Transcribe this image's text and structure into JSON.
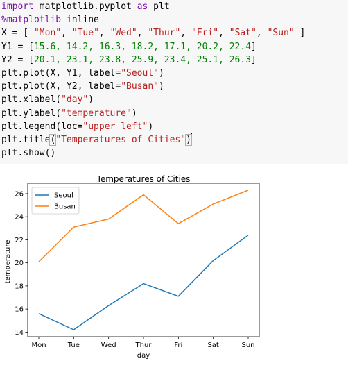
{
  "code_lines": [
    [
      {
        "t": "import",
        "c": "kw"
      },
      {
        "t": " matplotlib.pyplot ",
        "c": ""
      },
      {
        "t": "as",
        "c": "kw"
      },
      {
        "t": " plt",
        "c": ""
      }
    ],
    [
      {
        "t": "%matplotlib",
        "c": "magic"
      },
      {
        "t": " inline",
        "c": ""
      }
    ],
    [
      {
        "t": "X = [ ",
        "c": ""
      },
      {
        "t": "\"Mon\"",
        "c": "str"
      },
      {
        "t": ", ",
        "c": ""
      },
      {
        "t": "\"Tue\"",
        "c": "str"
      },
      {
        "t": ", ",
        "c": ""
      },
      {
        "t": "\"Wed\"",
        "c": "str"
      },
      {
        "t": ", ",
        "c": ""
      },
      {
        "t": "\"Thur\"",
        "c": "str"
      },
      {
        "t": ", ",
        "c": ""
      },
      {
        "t": "\"Fri\"",
        "c": "str"
      },
      {
        "t": ", ",
        "c": ""
      },
      {
        "t": "\"Sat\"",
        "c": "str"
      },
      {
        "t": ", ",
        "c": ""
      },
      {
        "t": "\"Sun\"",
        "c": "str"
      },
      {
        "t": " ]",
        "c": ""
      }
    ],
    [
      {
        "t": "Y1 = [",
        "c": ""
      },
      {
        "t": "15.6, 14.2, 16.3, 18.2, 17.1, 20.2, 22.4",
        "c": "num"
      },
      {
        "t": "]",
        "c": ""
      }
    ],
    [
      {
        "t": "Y2 = [",
        "c": ""
      },
      {
        "t": "20.1, 23.1, 23.8, 25.9, 23.4, 25.1, 26.3",
        "c": "num"
      },
      {
        "t": "]",
        "c": ""
      }
    ],
    [
      {
        "t": "plt.plot(X, Y1, label=",
        "c": ""
      },
      {
        "t": "\"Seoul\"",
        "c": "str"
      },
      {
        "t": ")",
        "c": ""
      }
    ],
    [
      {
        "t": "plt.plot(X, Y2, label=",
        "c": ""
      },
      {
        "t": "\"Busan\"",
        "c": "str"
      },
      {
        "t": ")",
        "c": ""
      }
    ],
    [
      {
        "t": "plt.xlabel(",
        "c": ""
      },
      {
        "t": "\"day\"",
        "c": "str"
      },
      {
        "t": ")",
        "c": ""
      }
    ],
    [
      {
        "t": "plt.ylabel(",
        "c": ""
      },
      {
        "t": "\"temperature\"",
        "c": "str"
      },
      {
        "t": ")",
        "c": ""
      }
    ],
    [
      {
        "t": "plt.legend(loc=",
        "c": ""
      },
      {
        "t": "\"upper left\"",
        "c": "str"
      },
      {
        "t": ")",
        "c": ""
      }
    ],
    [
      {
        "t": "plt.title",
        "c": ""
      },
      {
        "t": "(",
        "c": "bracket"
      },
      {
        "t": "\"Temperatures of Cities\"",
        "c": "str"
      },
      {
        "t": ")",
        "c": "bracket"
      },
      {
        "t": "",
        "c": "cursor"
      }
    ],
    [
      {
        "t": "plt.show()",
        "c": ""
      }
    ]
  ],
  "colors": {
    "seoul": "#1f77b4",
    "busan": "#ff7f0e"
  },
  "chart_data": {
    "type": "line",
    "title": "Temperatures of Cities",
    "xlabel": "day",
    "ylabel": "temperature",
    "categories": [
      "Mon",
      "Tue",
      "Wed",
      "Thur",
      "Fri",
      "Sat",
      "Sun"
    ],
    "series": [
      {
        "name": "Seoul",
        "values": [
          15.6,
          14.2,
          16.3,
          18.2,
          17.1,
          20.2,
          22.4
        ]
      },
      {
        "name": "Busan",
        "values": [
          20.1,
          23.1,
          23.8,
          25.9,
          23.4,
          25.1,
          26.3
        ]
      }
    ],
    "yticks": [
      "14",
      "16",
      "18",
      "20",
      "22",
      "24",
      "26"
    ],
    "ylim": [
      13.6,
      26.9
    ],
    "grid": false,
    "legend_position": "upper left"
  }
}
